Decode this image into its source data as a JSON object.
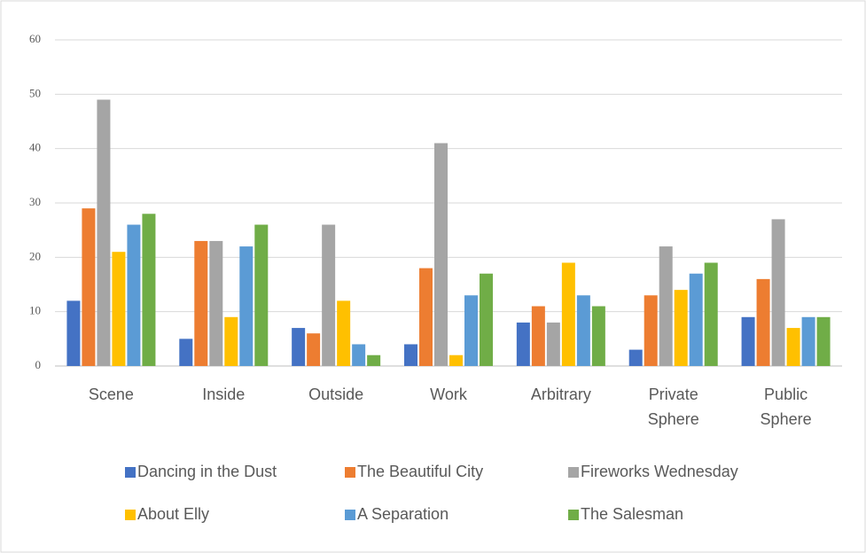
{
  "chart_data": {
    "type": "bar",
    "categories": [
      "Scene",
      "Inside",
      "Outside",
      "Work",
      "Arbitrary",
      "Private Sphere",
      "Public Sphere"
    ],
    "series": [
      {
        "name": "Dancing in the Dust",
        "color": "#4472c4",
        "values": [
          12,
          5,
          7,
          4,
          8,
          3,
          9
        ]
      },
      {
        "name": "The Beautiful City",
        "color": "#ed7d31",
        "values": [
          29,
          23,
          6,
          18,
          11,
          13,
          16
        ]
      },
      {
        "name": "Fireworks Wednesday",
        "color": "#a5a5a5",
        "values": [
          49,
          23,
          26,
          41,
          8,
          22,
          27
        ]
      },
      {
        "name": "About Elly",
        "color": "#ffc000",
        "values": [
          21,
          9,
          12,
          2,
          19,
          14,
          7
        ]
      },
      {
        "name": "A Separation",
        "color": "#5b9bd5",
        "values": [
          26,
          22,
          4,
          13,
          13,
          17,
          9
        ]
      },
      {
        "name": "The Salesman",
        "color": "#70ad47",
        "values": [
          28,
          26,
          2,
          17,
          11,
          19,
          9
        ]
      }
    ],
    "ylim": [
      0,
      60
    ],
    "yticks": [
      0,
      10,
      20,
      30,
      40,
      50,
      60
    ],
    "grid": true,
    "legend": "bottom"
  }
}
